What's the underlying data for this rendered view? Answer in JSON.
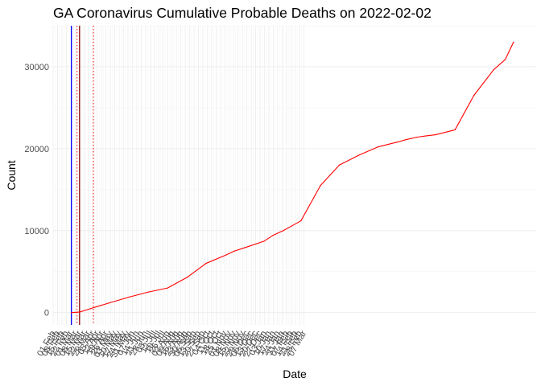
{
  "chart_data": {
    "type": "line",
    "title": "GA Coronavirus Cumulative Probable Deaths on 2022-02-02",
    "xlabel": "Date",
    "ylabel": "Count",
    "xlim": [
      "2020-02-01",
      "2022-03-10"
    ],
    "ylim": [
      -1500,
      35000
    ],
    "y_ticks": [
      0,
      10000,
      20000,
      30000
    ],
    "x_tick_labels": [
      "01 Feb",
      "08 Feb",
      "15 Feb",
      "22 Feb",
      "01 Mar",
      "08 Mar",
      "15 Mar",
      "22 Mar",
      "29 Mar",
      "05 Apr",
      "12 Apr",
      "19 Apr",
      "26 Apr",
      "03 May",
      "10 May",
      "17 May",
      "24 May",
      "31 May",
      "07 Jun",
      "14 Jun",
      "21 Jun",
      "28 Jun",
      "05 Jul",
      "12 Jul",
      "19 Jul",
      "26 Jul",
      "02 Aug",
      "09 Aug",
      "16 Aug",
      "23 Aug",
      "30 Aug",
      "06 Sep",
      "13 Sep",
      "20 Sep",
      "27 Sep",
      "04 Oct",
      "11 Oct",
      "18 Oct",
      "25 Oct",
      "01 Nov",
      "08 Nov",
      "15 Nov",
      "22 Nov",
      "29 Nov",
      "06 Dec",
      "13 Dec",
      "20 Dec",
      "27 Dec",
      "03 Jan",
      "10 Jan",
      "17 Jan",
      "24 Jan",
      "31 Jan",
      "07 Feb",
      "14 Feb",
      "21 Feb",
      "28 Feb",
      "07 Mar"
    ],
    "grid": true,
    "vertical_lines": [
      {
        "date": "2020-03-01",
        "color": "#0000ff",
        "style": "solid"
      },
      {
        "date": "2020-03-14",
        "color": "#8b0000",
        "style": "solid"
      },
      {
        "date": "2020-03-10",
        "color": "#ff0000",
        "style": "dotted"
      },
      {
        "date": "2020-04-05",
        "color": "#ff0000",
        "style": "dotted"
      }
    ],
    "series": [
      {
        "color": "#ff0000",
        "x": [
          "2020-03-01",
          "2020-03-15",
          "2020-04-01",
          "2020-05-01",
          "2020-06-01",
          "2020-07-01",
          "2020-08-01",
          "2020-09-01",
          "2020-10-01",
          "2020-11-01",
          "2020-11-15",
          "2020-12-01",
          "2021-01-01",
          "2021-01-15",
          "2021-02-01",
          "2021-02-15",
          "2021-03-01",
          "2021-04-01",
          "2021-05-01",
          "2021-06-01",
          "2021-07-01",
          "2021-08-01",
          "2021-08-15",
          "2021-09-01",
          "2021-09-15",
          "2021-10-01",
          "2021-11-01",
          "2021-12-01",
          "2022-01-01",
          "2022-01-20",
          "2022-02-02"
        ],
        "values": [
          0,
          80,
          500,
          1200,
          1900,
          2500,
          3000,
          4300,
          6000,
          7000,
          7500,
          7900,
          8700,
          9400,
          10000,
          10600,
          11200,
          15500,
          18000,
          19200,
          20200,
          20800,
          21100,
          21400,
          21550,
          21700,
          22300,
          26500,
          29600,
          30900,
          33000
        ]
      }
    ]
  }
}
